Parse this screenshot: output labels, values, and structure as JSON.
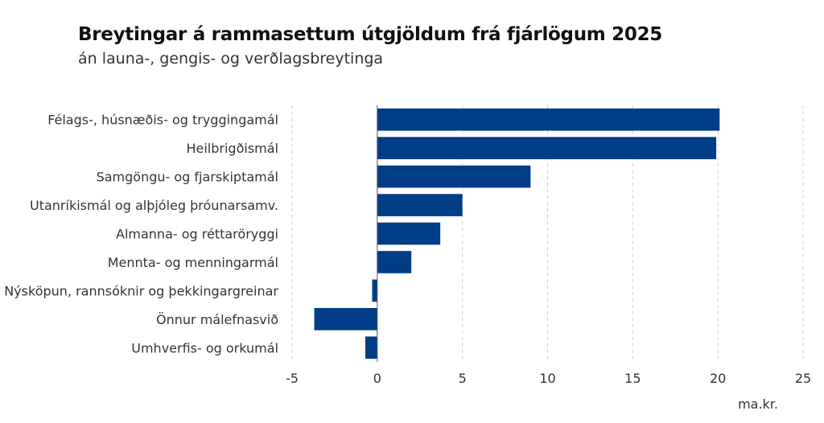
{
  "chart_data": {
    "type": "bar",
    "orientation": "horizontal",
    "title": "Breytingar á rammasettum útgjöldum frá fjárlögum 2025",
    "subtitle": "án launa-, gengis- og verðlagsbreytinga",
    "categories": [
      "Félags-, húsnæðis- og tryggingamál",
      "Heilbrigðismál",
      "Samgöngu- og fjarskiptamál",
      "Utanríkismál og alþjóleg þróunarsamv.",
      "Almanna- og réttaröryggi",
      "Mennta- og menningarmál",
      "Nýsköpun, rannsóknir og þekkingargreinar",
      "Önnur málefnasvið",
      "Umhverfis- og orkumál"
    ],
    "values": [
      20.1,
      19.9,
      9.0,
      5.0,
      3.7,
      2.0,
      -0.3,
      -3.7,
      -0.7
    ],
    "xlim": [
      -5,
      25
    ],
    "xticks": [
      -5,
      0,
      5,
      10,
      15,
      20,
      25
    ],
    "xlabel": "ma.kr.",
    "bar_color": "#003d87",
    "grid": "vertical dashed"
  }
}
